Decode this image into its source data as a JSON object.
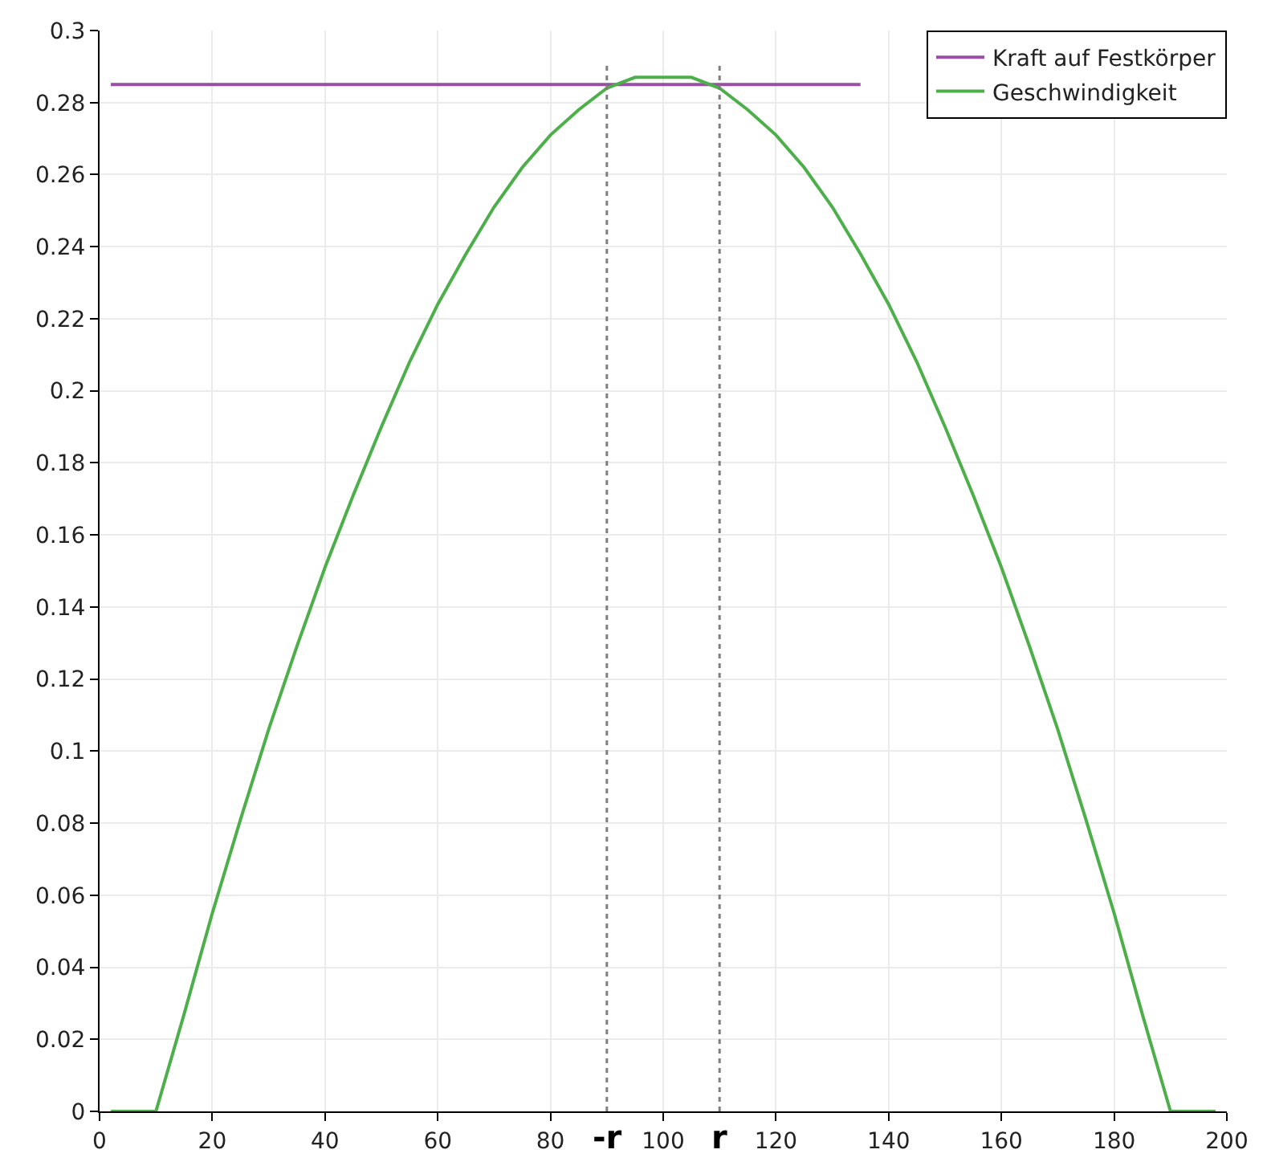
{
  "chart_data": {
    "type": "line",
    "series": [
      {
        "name": "Kraft auf Festkörper",
        "color": "#984ea3",
        "x": [
          2,
          135
        ],
        "values": [
          0.285,
          0.285
        ]
      },
      {
        "name": "Geschwindigkeit",
        "color": "#4daf4a",
        "x": [
          2,
          10,
          15,
          20,
          25,
          30,
          35,
          40,
          45,
          50,
          55,
          60,
          65,
          70,
          75,
          80,
          85,
          90,
          95,
          100,
          105,
          110,
          115,
          120,
          125,
          130,
          135,
          140,
          145,
          150,
          155,
          160,
          165,
          170,
          175,
          180,
          185,
          190,
          198
        ],
        "values": [
          0,
          0,
          0.027,
          0.055,
          0.081,
          0.106,
          0.129,
          0.151,
          0.171,
          0.19,
          0.208,
          0.224,
          0.238,
          0.251,
          0.262,
          0.271,
          0.278,
          0.284,
          0.287,
          0.287,
          0.287,
          0.284,
          0.278,
          0.271,
          0.262,
          0.251,
          0.238,
          0.224,
          0.208,
          0.19,
          0.171,
          0.151,
          0.129,
          0.106,
          0.081,
          0.055,
          0.027,
          0,
          0
        ]
      }
    ],
    "xlim": [
      0,
      200
    ],
    "xticks": [
      0,
      20,
      40,
      60,
      80,
      100,
      120,
      140,
      160,
      180,
      200
    ],
    "ylim": [
      0,
      0.3
    ],
    "yticks": [
      0,
      0.02,
      0.04,
      0.06,
      0.08,
      0.1,
      0.12,
      0.14,
      0.16,
      0.18,
      0.2,
      0.22,
      0.24,
      0.26,
      0.28,
      0.3
    ],
    "ref_lines": [
      {
        "axis": "x",
        "value": 90,
        "label": "-r",
        "color": "#7f7f7f",
        "line_style": "dotted"
      },
      {
        "axis": "x",
        "value": 110,
        "label": "r",
        "color": "#7f7f7f",
        "line_style": "dotted"
      }
    ],
    "grid": true,
    "legend": "top right",
    "marker": "none",
    "line_style": "solid"
  }
}
